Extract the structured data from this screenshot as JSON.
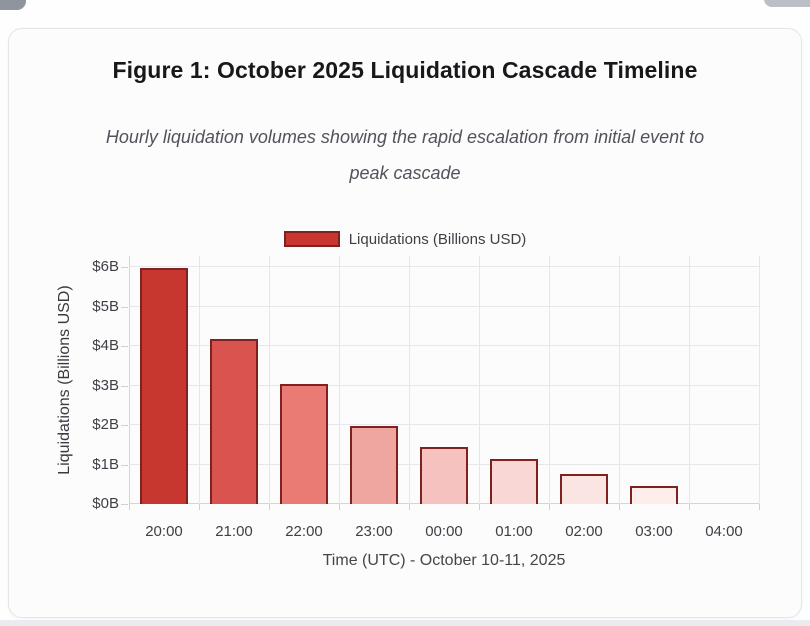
{
  "page": {
    "fragments": [
      "top-left-ui-fragment",
      "top-right-ui-fragment",
      "bottom-band"
    ]
  },
  "legend": {
    "label": "Liquidations (Billions USD)",
    "swatch_fill": "#c8372f",
    "swatch_border": "#7f221f"
  },
  "chart_data": {
    "type": "bar",
    "title": "Figure 1: October 2025 Liquidation Cascade Timeline",
    "subtitle": "Hourly liquidation volumes showing the rapid escalation from initial event to peak cascade",
    "subtitle_lines": [
      "Hourly liquidation volumes showing the rapid escalation from initial event to",
      "peak cascade"
    ],
    "series_name": "Liquidations (Billions USD)",
    "categories": [
      "20:00",
      "21:00",
      "22:00",
      "23:00",
      "00:00",
      "01:00",
      "02:00",
      "03:00",
      "04:00"
    ],
    "values": [
      5.97,
      4.18,
      3.05,
      1.97,
      1.45,
      1.15,
      0.75,
      0.45,
      0
    ],
    "xlabel": "Time (UTC) - October 10-11, 2025",
    "ylabel": "Liquidations (Billions USD)",
    "yticks": [
      "$0B",
      "$1B",
      "$2B",
      "$3B",
      "$4B",
      "$5B",
      "$6B"
    ],
    "ytick_values": [
      0,
      1,
      2,
      3,
      4,
      5,
      6
    ],
    "ylim": [
      0,
      6.28
    ],
    "grid": true,
    "legend_position": "top",
    "bar_colors": [
      "#c8372f",
      "#d9534f",
      "#e97b74",
      "#efa6a1",
      "#f5c2bf",
      "#f9d7d4",
      "#fbe5e3",
      "#fdeeec",
      "#fef6f5"
    ],
    "bar_border_color": "#7f221f",
    "grid_color": "#e6e7ec",
    "axis_color": "#d4d5da"
  }
}
